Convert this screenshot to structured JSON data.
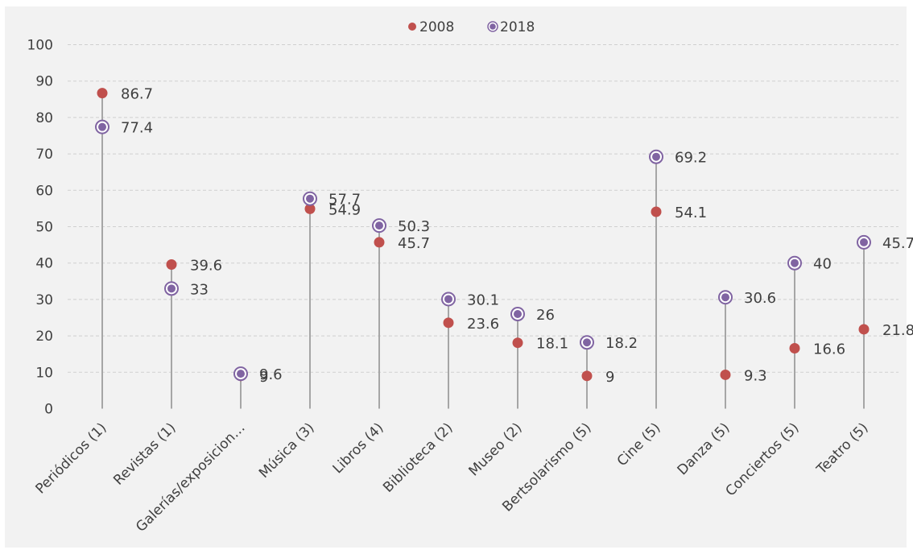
{
  "chart_data": {
    "type": "scatter",
    "subtype": "dot-plot-with-drop-lines",
    "title": "",
    "xlabel": "",
    "ylabel": "",
    "ylim": [
      0,
      100
    ],
    "yticks": [
      0,
      10,
      20,
      30,
      40,
      50,
      60,
      70,
      80,
      90,
      100
    ],
    "grid": "horizontal dashed",
    "legend_position": "top-center",
    "categories": [
      "Periódicos (1)",
      "Revistas  (1)",
      "Galerías/exposicion…",
      "Música (3)",
      "Libros (4)",
      "Biblioteca (2)",
      "Museo (2)",
      "Bertsolarismo (5)",
      "Cine (5)",
      "Danza (5)",
      "Conciertos (5)",
      "Teatro (5)"
    ],
    "series": [
      {
        "name": "2008",
        "color": "#c0504d",
        "marker": "filled-circle",
        "values": [
          86.7,
          39.6,
          9,
          54.9,
          45.7,
          23.6,
          18.1,
          9,
          54.1,
          9.3,
          16.6,
          21.8
        ],
        "labels": [
          "86.7",
          "39.6",
          "9",
          "54.9",
          "45.7",
          "23.6",
          "18.1",
          "9",
          "54.1",
          "9.3",
          "16.6",
          "21.8"
        ]
      },
      {
        "name": "2018",
        "color": "#8064a2",
        "marker": "ringed-circle",
        "values": [
          77.4,
          33,
          9.6,
          57.7,
          50.3,
          30.1,
          26,
          18.2,
          69.2,
          30.6,
          40,
          45.7
        ],
        "labels": [
          "77.4",
          "33",
          "9.6",
          "57.7",
          "50.3",
          "30.1",
          "26",
          "18.2",
          "69.2",
          "30.6",
          "40",
          "45.7"
        ]
      }
    ]
  }
}
